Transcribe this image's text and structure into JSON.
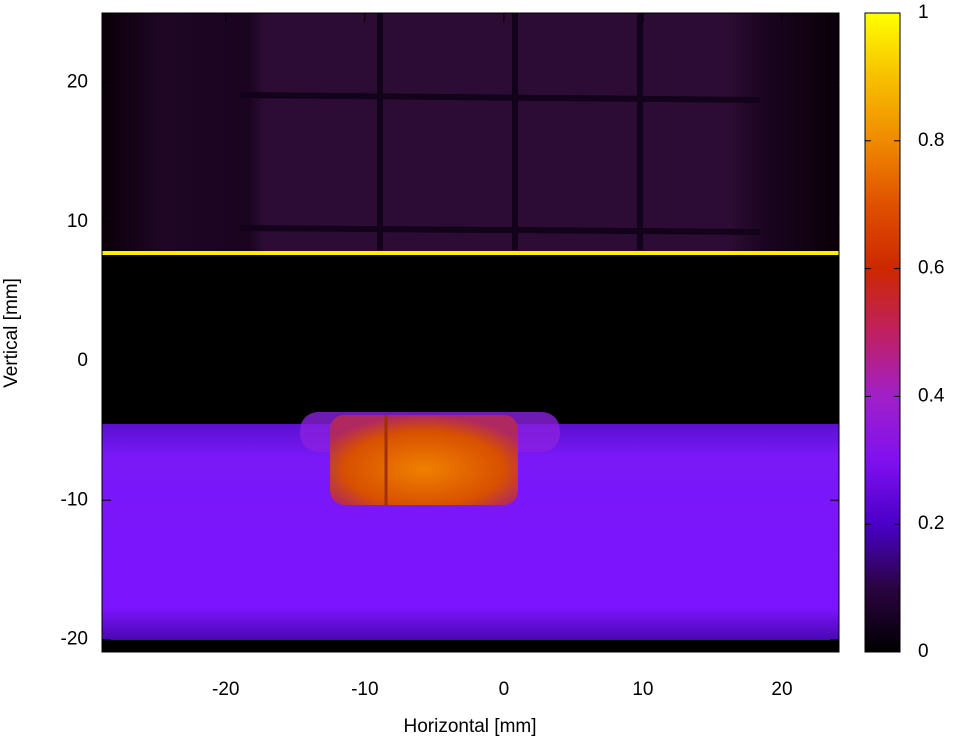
{
  "chart_data": {
    "type": "heatmap",
    "xlabel": "Horizontal [mm]",
    "ylabel": "Vertical [mm]",
    "xlim": [
      -28.9,
      24.1
    ],
    "xticks": [
      -20,
      -10,
      0,
      10,
      20
    ],
    "ylim": [
      -20.9,
      25
    ],
    "yticks": [
      -20,
      -10,
      0,
      10,
      20
    ],
    "clim": [
      0,
      1
    ],
    "cticks": [
      0,
      0.2,
      0.4,
      0.6,
      0.8,
      1
    ]
  }
}
